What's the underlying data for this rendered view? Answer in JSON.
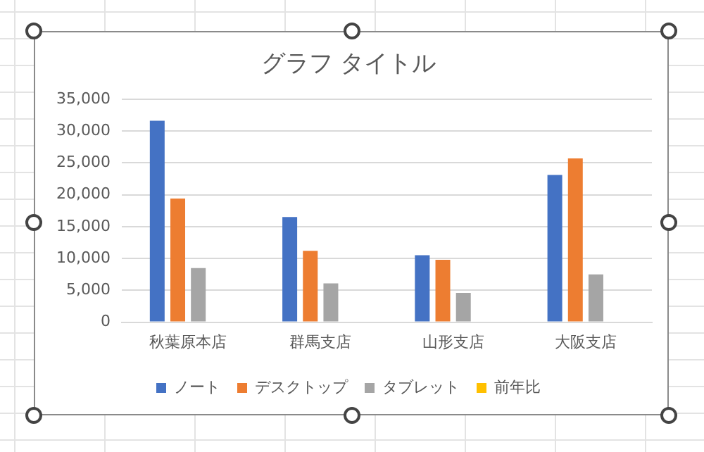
{
  "chart_data": {
    "type": "bar",
    "title": "グラフ タイトル",
    "categories": [
      "秋葉原本店",
      "群馬支店",
      "山形支店",
      "大阪支店"
    ],
    "series": [
      {
        "name": "ノート",
        "color": "#4472c4",
        "values": [
          31600,
          16500,
          10500,
          23100
        ]
      },
      {
        "name": "デスクトップ",
        "color": "#ed7d31",
        "values": [
          19400,
          11200,
          9800,
          25700
        ]
      },
      {
        "name": "タブレット",
        "color": "#a5a5a5",
        "values": [
          8500,
          6100,
          4600,
          7500
        ]
      },
      {
        "name": "前年比",
        "color": "#ffc000",
        "values": [
          null,
          null,
          null,
          null
        ]
      }
    ],
    "ylim": [
      0,
      35000
    ],
    "yticks": [
      0,
      {
        "value": 5000,
        "label": "5,000"
      },
      {
        "value": 10000,
        "label": "10,000"
      },
      {
        "value": 15000,
        "label": "15,000"
      },
      {
        "value": 20000,
        "label": "20,000"
      },
      {
        "value": 25000,
        "label": "25,000"
      },
      {
        "value": 30000,
        "label": "30,000"
      },
      {
        "value": 35000,
        "label": "35,000"
      }
    ],
    "grid": "y",
    "legend": "bottom"
  }
}
